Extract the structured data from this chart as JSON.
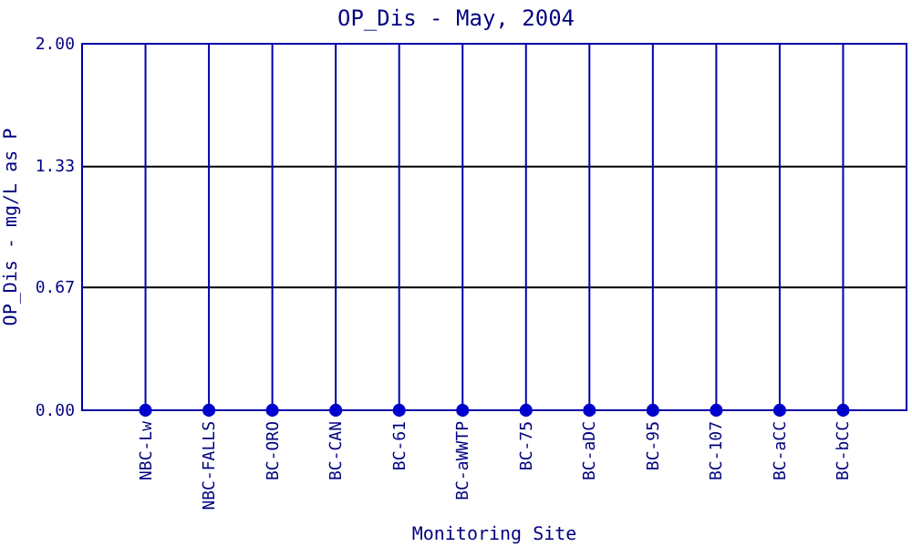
{
  "chart_data": {
    "type": "scatter",
    "title": "OP_Dis - May, 2004",
    "xlabel": "Monitoring Site",
    "ylabel": "OP_Dis - mg/L as P",
    "categories": [
      "NBC-Lw",
      "NBC-FALLS",
      "BC-ORO",
      "BC-CAN",
      "BC-61",
      "BC-aWWTP",
      "BC-75",
      "BC-aDC",
      "BC-95",
      "BC-107",
      "BC-aCC",
      "BC-bCC"
    ],
    "series": [
      {
        "color": "#0000cc",
        "values": [
          0,
          0,
          0,
          0,
          0,
          0,
          0,
          0,
          0,
          0,
          0,
          0
        ]
      }
    ],
    "ylim": [
      0,
      2
    ],
    "yticks": [
      {
        "value": 0,
        "label": "0.00"
      },
      {
        "value": 0.67,
        "label": "0.67"
      },
      {
        "value": 1.33,
        "label": "1.33"
      },
      {
        "value": 2,
        "label": "2.00"
      }
    ],
    "grid": true,
    "marker": "circle"
  }
}
